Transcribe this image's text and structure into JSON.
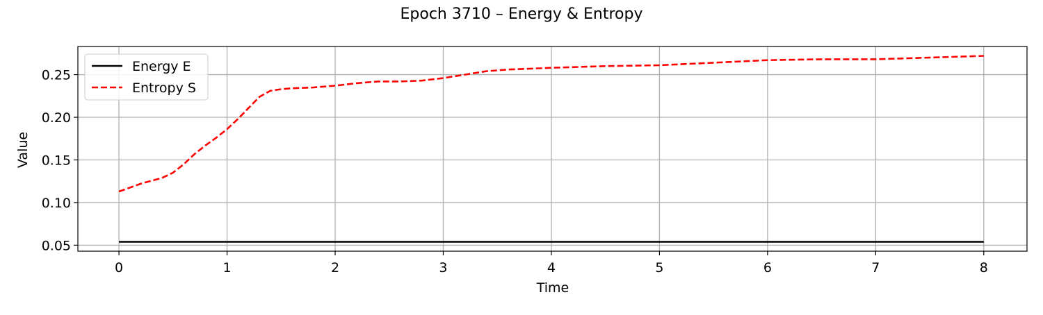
{
  "chart_data": {
    "type": "line",
    "title": "Epoch 3710 – Energy & Entropy",
    "xlabel": "Time",
    "ylabel": "Value",
    "xlim": [
      -0.38,
      8.4
    ],
    "ylim": [
      0.043,
      0.283
    ],
    "xticks": [
      0,
      1,
      2,
      3,
      4,
      5,
      6,
      7,
      8
    ],
    "xtick_labels": [
      "0",
      "1",
      "2",
      "3",
      "4",
      "5",
      "6",
      "7",
      "8"
    ],
    "yticks": [
      0.05,
      0.1,
      0.15,
      0.2,
      0.25
    ],
    "ytick_labels": [
      "0.05",
      "0.10",
      "0.15",
      "0.20",
      "0.25"
    ],
    "grid": true,
    "legend_position": "top-left",
    "series": [
      {
        "name": "Energy E",
        "color": "#000000",
        "style": "solid",
        "x": [
          0,
          8
        ],
        "y": [
          0.054,
          0.054
        ]
      },
      {
        "name": "Entropy S",
        "color": "#ff0000",
        "style": "dashed",
        "x": [
          0,
          0.2,
          0.4,
          0.5,
          0.6,
          0.7,
          0.8,
          0.9,
          1.0,
          1.1,
          1.2,
          1.3,
          1.4,
          1.5,
          1.6,
          1.8,
          2.0,
          2.2,
          2.4,
          2.6,
          2.8,
          3.0,
          3.2,
          3.4,
          3.6,
          3.8,
          4.0,
          4.5,
          5.0,
          5.5,
          6.0,
          6.5,
          7.0,
          7.5,
          8.0
        ],
        "y": [
          0.113,
          0.122,
          0.129,
          0.135,
          0.145,
          0.157,
          0.167,
          0.176,
          0.186,
          0.198,
          0.211,
          0.224,
          0.231,
          0.233,
          0.234,
          0.235,
          0.237,
          0.24,
          0.242,
          0.242,
          0.243,
          0.246,
          0.25,
          0.254,
          0.256,
          0.257,
          0.258,
          0.26,
          0.261,
          0.264,
          0.267,
          0.268,
          0.268,
          0.27,
          0.272
        ]
      }
    ]
  }
}
